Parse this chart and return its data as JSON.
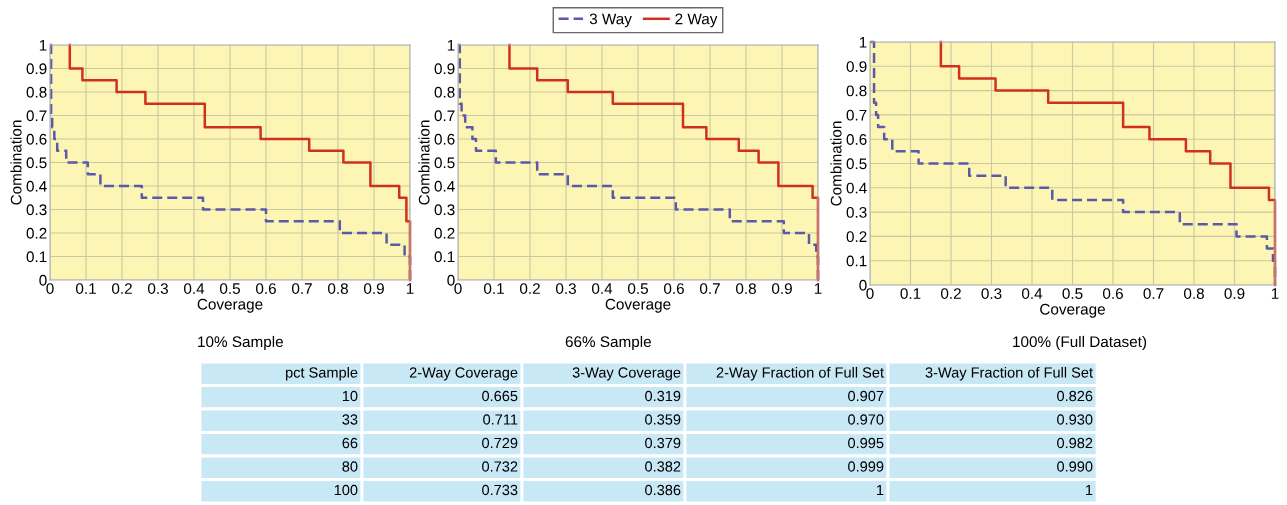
{
  "chart_data": [
    {
      "type": "step",
      "title": "10% Sample",
      "xlabel": "Coverage",
      "ylabel": "Combination",
      "xlim": [
        0,
        1
      ],
      "ylim": [
        0,
        1
      ],
      "xticks": [
        0,
        0.1,
        0.2,
        0.3,
        0.4,
        0.5,
        0.6,
        0.7,
        0.8,
        0.9,
        1
      ],
      "yticks": [
        0,
        0.1,
        0.2,
        0.3,
        0.4,
        0.5,
        0.6,
        0.7,
        0.8,
        0.9,
        1
      ],
      "grid": true,
      "series": [
        {
          "color": "#5a5aa8",
          "line_style": "dashed",
          "x": [
            0,
            0.003,
            0.006,
            0.012,
            0.02,
            0.045,
            0.105,
            0.14,
            0.255,
            0.425,
            0.6,
            0.805,
            0.935,
            0.985,
            1.0
          ],
          "values": [
            1.0,
            0.7,
            0.65,
            0.6,
            0.55,
            0.5,
            0.45,
            0.4,
            0.35,
            0.3,
            0.25,
            0.2,
            0.15,
            0.1,
            0
          ]
        },
        {
          "color": "#d03020",
          "line_style": "solid",
          "x": [
            0.055,
            0.055,
            0.09,
            0.185,
            0.265,
            0.43,
            0.585,
            0.72,
            0.815,
            0.89,
            0.97,
            0.99,
            1.0
          ],
          "values": [
            1.0,
            0.9,
            0.85,
            0.8,
            0.75,
            0.65,
            0.6,
            0.55,
            0.5,
            0.4,
            0.35,
            0.25,
            0
          ]
        }
      ]
    },
    {
      "type": "step",
      "title": "66% Sample",
      "xlabel": "Coverage",
      "ylabel": "Combination",
      "xlim": [
        0,
        1
      ],
      "ylim": [
        0,
        1
      ],
      "xticks": [
        0,
        0.1,
        0.2,
        0.3,
        0.4,
        0.5,
        0.6,
        0.7,
        0.8,
        0.9,
        1
      ],
      "yticks": [
        0,
        0.1,
        0.2,
        0.3,
        0.4,
        0.5,
        0.6,
        0.7,
        0.8,
        0.9,
        1
      ],
      "grid": true,
      "legend": "top",
      "series": [
        {
          "name": "3 Way",
          "color": "#5a5aa8",
          "line_style": "dashed",
          "x": [
            0,
            0.005,
            0.01,
            0.02,
            0.04,
            0.05,
            0.105,
            0.22,
            0.305,
            0.43,
            0.605,
            0.755,
            0.905,
            0.975,
            0.995,
            1.0
          ],
          "values": [
            1.0,
            0.75,
            0.7,
            0.65,
            0.6,
            0.55,
            0.5,
            0.45,
            0.4,
            0.35,
            0.3,
            0.25,
            0.2,
            0.15,
            0.1,
            0
          ]
        },
        {
          "name": "2 Way",
          "color": "#d03020",
          "line_style": "solid",
          "x": [
            0.143,
            0.143,
            0.22,
            0.305,
            0.43,
            0.625,
            0.69,
            0.78,
            0.835,
            0.89,
            0.985,
            1.0
          ],
          "values": [
            1.0,
            0.9,
            0.85,
            0.8,
            0.75,
            0.65,
            0.6,
            0.55,
            0.5,
            0.4,
            0.35,
            0
          ]
        }
      ]
    },
    {
      "type": "step",
      "title": "100% (Full Dataset)",
      "xlabel": "Coverage",
      "ylabel": "Combination",
      "xlim": [
        0,
        1
      ],
      "ylim": [
        0,
        1
      ],
      "xticks": [
        0,
        0.1,
        0.2,
        0.3,
        0.4,
        0.5,
        0.6,
        0.7,
        0.8,
        0.9,
        1
      ],
      "yticks": [
        0,
        0.1,
        0.2,
        0.3,
        0.4,
        0.5,
        0.6,
        0.7,
        0.8,
        0.9,
        1
      ],
      "grid": true,
      "series": [
        {
          "color": "#5a5aa8",
          "line_style": "dashed",
          "x": [
            0,
            0.01,
            0.015,
            0.02,
            0.035,
            0.055,
            0.12,
            0.245,
            0.335,
            0.45,
            0.625,
            0.765,
            0.905,
            0.98,
            0.995,
            1.0
          ],
          "values": [
            1.0,
            0.75,
            0.7,
            0.65,
            0.6,
            0.55,
            0.5,
            0.45,
            0.4,
            0.35,
            0.3,
            0.25,
            0.2,
            0.15,
            0.1,
            0
          ]
        },
        {
          "color": "#d03020",
          "line_style": "solid",
          "x": [
            0.175,
            0.175,
            0.22,
            0.31,
            0.44,
            0.625,
            0.69,
            0.78,
            0.84,
            0.89,
            0.985,
            1.0
          ],
          "values": [
            1.0,
            0.9,
            0.85,
            0.8,
            0.75,
            0.65,
            0.6,
            0.55,
            0.5,
            0.4,
            0.35,
            0
          ]
        }
      ]
    },
    {
      "type": "other",
      "color": "#c8e8f6",
      "categories": [
        "pct Sample",
        "2-Way Coverage",
        "3-Way Coverage",
        "2-Way Fraction of Full Set",
        "3-Way Fraction of Full Set"
      ],
      "cell_labels": [
        [
          "10",
          "0.665",
          "0.319",
          "0.907",
          "0.826"
        ],
        [
          "33",
          "0.711",
          "0.359",
          "0.970",
          "0.930"
        ],
        [
          "66",
          "0.729",
          "0.379",
          "0.995",
          "0.982"
        ],
        [
          "80",
          "0.732",
          "0.382",
          "0.999",
          "0.990"
        ],
        [
          "100",
          "0.733",
          "0.386",
          "1",
          "1"
        ]
      ]
    }
  ]
}
